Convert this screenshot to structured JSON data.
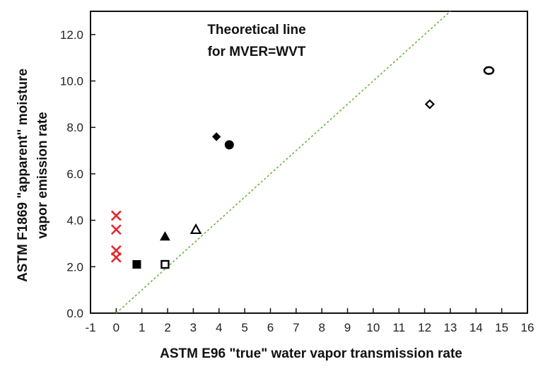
{
  "chart_data": {
    "type": "scatter",
    "title": "",
    "xlabel": "ASTM E96 \"true\" water vapor transmission rate",
    "ylabel_lines": [
      "ASTM F1869 \"apparent\" moisture",
      "vapor emission rate"
    ],
    "xlim": [
      -1,
      16
    ],
    "ylim": [
      0,
      13
    ],
    "x_ticks": [
      -1,
      0,
      1,
      2,
      3,
      4,
      5,
      6,
      7,
      8,
      9,
      10,
      11,
      12,
      13,
      14,
      15,
      16
    ],
    "y_ticks": [
      0,
      2,
      4,
      6,
      8,
      10,
      12
    ],
    "y_tick_labels": [
      "0.0",
      "2.0",
      "4.0",
      "6.0",
      "8.0",
      "10.0",
      "12.0"
    ],
    "grid": false,
    "annotation_lines": [
      "Theoretical line",
      "for MVER=WVT"
    ],
    "reference_line": {
      "slope": 1,
      "intercept": 0,
      "color": "#6cb33f",
      "style": "dotted"
    },
    "points": [
      {
        "x": 0,
        "y": 4.2,
        "marker": "x",
        "color": "#e8262a"
      },
      {
        "x": 0,
        "y": 3.6,
        "marker": "x",
        "color": "#e8262a"
      },
      {
        "x": 0,
        "y": 2.7,
        "marker": "x",
        "color": "#e8262a"
      },
      {
        "x": 0,
        "y": 2.4,
        "marker": "x",
        "color": "#e8262a"
      },
      {
        "x": 0.8,
        "y": 2.1,
        "marker": "square-filled",
        "color": "#000000"
      },
      {
        "x": 1.9,
        "y": 2.1,
        "marker": "square-open",
        "color": "#000000"
      },
      {
        "x": 1.9,
        "y": 3.3,
        "marker": "triangle-filled",
        "color": "#000000"
      },
      {
        "x": 3.1,
        "y": 3.6,
        "marker": "triangle-open",
        "color": "#000000"
      },
      {
        "x": 3.9,
        "y": 7.6,
        "marker": "diamond-filled",
        "color": "#000000"
      },
      {
        "x": 4.4,
        "y": 7.25,
        "marker": "circle-filled",
        "color": "#000000"
      },
      {
        "x": 12.2,
        "y": 9.0,
        "marker": "diamond-open",
        "color": "#000000"
      },
      {
        "x": 14.5,
        "y": 10.45,
        "marker": "circle-open",
        "color": "#000000"
      }
    ]
  }
}
